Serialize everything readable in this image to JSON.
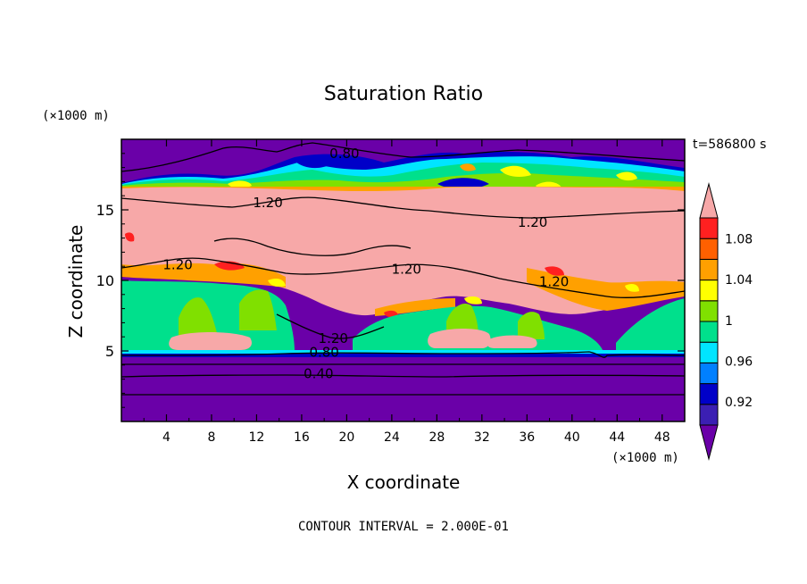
{
  "chart_data": {
    "type": "heatmap",
    "title": "Saturation Ratio",
    "xlabel": "X coordinate",
    "ylabel": "Z coordinate",
    "x_unit": "(×1000 m)",
    "y_unit": "(×1000 m)",
    "time_label": "t=586800 s",
    "footer": "CONTOUR INTERVAL = 2.000E-01",
    "xlim": [
      0,
      50
    ],
    "ylim": [
      0,
      20
    ],
    "x_ticks": [
      4,
      8,
      12,
      16,
      20,
      24,
      28,
      32,
      36,
      40,
      44,
      48
    ],
    "y_ticks": [
      5,
      10,
      15
    ],
    "colorbar": {
      "levels": [
        0.92,
        0.96,
        1,
        1.04,
        1.08
      ],
      "labels": [
        "0.92",
        "0.96",
        "1",
        "1.04",
        "1.08"
      ],
      "colors": [
        "#6a00a8",
        "#3b1fb3",
        "#0000c8",
        "#0080ff",
        "#00e5ff",
        "#00e08c",
        "#80e000",
        "#ffff00",
        "#ffa000",
        "#ff6000",
        "#ff2020",
        "#f7a8a8"
      ]
    },
    "contour_labels": [
      {
        "text": "0.80",
        "x": 19.8,
        "z": 19.0
      },
      {
        "text": "1.20",
        "x": 13.0,
        "z": 15.5
      },
      {
        "text": "1.20",
        "x": 36.5,
        "z": 14.1
      },
      {
        "text": "1.20",
        "x": 5.0,
        "z": 11.1
      },
      {
        "text": "1.20",
        "x": 25.3,
        "z": 10.8
      },
      {
        "text": "1.20",
        "x": 38.4,
        "z": 9.9
      },
      {
        "text": "1.20",
        "x": 18.8,
        "z": 5.9
      },
      {
        "text": "0.80",
        "x": 18.0,
        "z": 4.9
      },
      {
        "text": "0.40",
        "x": 17.5,
        "z": 3.4
      }
    ]
  }
}
